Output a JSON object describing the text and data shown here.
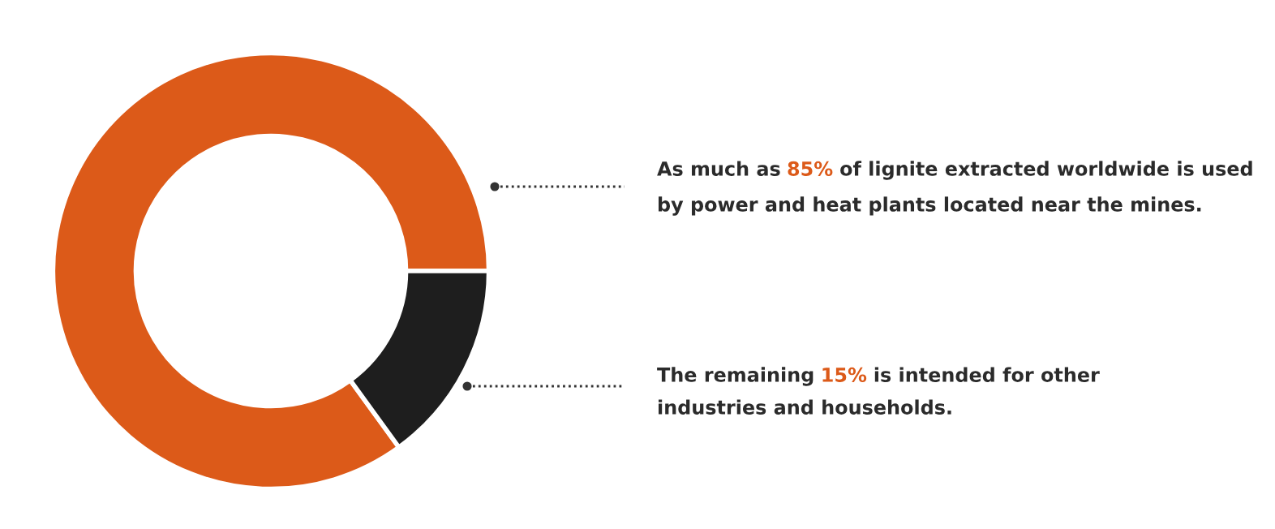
{
  "chart_data": {
    "type": "donut",
    "categories": [
      null,
      null
    ],
    "values": [
      85,
      15
    ],
    "colors": [
      "#dc5a19",
      "#1e1e1e"
    ],
    "annotations": [
      "As much as 85% of lignite extracted worldwide is used\nby power and heat plants located near the mines.",
      "The remaining 15% is intended for other\nindustries and households."
    ]
  }
}
